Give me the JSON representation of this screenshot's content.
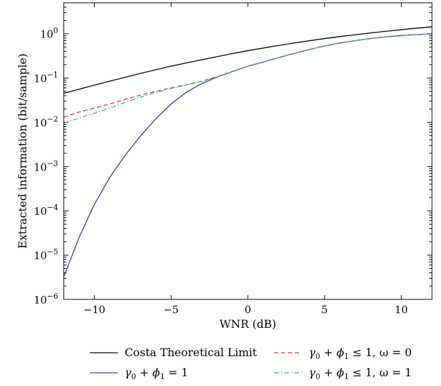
{
  "chart_data": {
    "type": "line",
    "title": "",
    "xlabel": "WNR (dB)",
    "ylabel": "Extracted information (bit/sample)",
    "xlim": [
      -12,
      12
    ],
    "ylim_log10": [
      -6,
      0.7
    ],
    "yscale": "log",
    "grid": false,
    "legend_position": "below",
    "x_ticks": [
      -10,
      -5,
      0,
      5,
      10
    ],
    "x_tick_labels": [
      "−10",
      "−5",
      "0",
      "5",
      "10"
    ],
    "y_ticks": [
      {
        "base": "10",
        "exp": "0",
        "value": 1
      },
      {
        "base": "10",
        "exp": "−1",
        "value": 0.1
      },
      {
        "base": "10",
        "exp": "−2",
        "value": 0.01
      },
      {
        "base": "10",
        "exp": "−3",
        "value": 0.001
      },
      {
        "base": "10",
        "exp": "−4",
        "value": 0.0001
      },
      {
        "base": "10",
        "exp": "−5",
        "value": 1e-05
      },
      {
        "base": "10",
        "exp": "−6",
        "value": 1e-06
      }
    ],
    "x": [
      -12,
      -11,
      -10,
      -9,
      -8,
      -7,
      -6,
      -5,
      -4,
      -3,
      -2,
      -1,
      0,
      1,
      2,
      3,
      4,
      5,
      6,
      7,
      8,
      9,
      10,
      11,
      12
    ],
    "series": [
      {
        "name": "Costa Theoretical Limit",
        "color": "#000000",
        "dash": "solid",
        "values": [
          0.045,
          0.056,
          0.069,
          0.085,
          0.104,
          0.127,
          0.154,
          0.185,
          0.22,
          0.259,
          0.305,
          0.357,
          0.414,
          0.477,
          0.545,
          0.618,
          0.696,
          0.778,
          0.864,
          0.953,
          1.045,
          1.14,
          1.236,
          1.334,
          1.433
        ]
      },
      {
        "name": "γ₀ + ϕ₁ = 1",
        "color": "#2e3f9e",
        "dash": "solid",
        "values": [
          3.2e-06,
          2.5e-05,
          0.00014,
          0.00057,
          0.0018,
          0.0049,
          0.012,
          0.026,
          0.048,
          0.075,
          0.105,
          0.14,
          0.185,
          0.23,
          0.29,
          0.36,
          0.44,
          0.53,
          0.62,
          0.7,
          0.78,
          0.85,
          0.91,
          0.96,
          0.99
        ]
      },
      {
        "name": "γ₀ + ϕ₁ ≤ 1, ω = 0",
        "color": "#e8302f",
        "dash": "6,4",
        "values": [
          0.013,
          0.017,
          0.021,
          0.026,
          0.033,
          0.041,
          0.05,
          0.06,
          0.071,
          0.085,
          0.108,
          0.142,
          0.185,
          0.23,
          0.29,
          0.36,
          0.44,
          0.53,
          0.62,
          0.7,
          0.78,
          0.85,
          0.91,
          0.96,
          0.99
        ]
      },
      {
        "name": "γ₀ + ϕ₁ ≤ 1, ω = 1",
        "color": "#2ab5b5",
        "dash": "7,3,1.5,3",
        "values": [
          0.0095,
          0.0125,
          0.016,
          0.021,
          0.028,
          0.037,
          0.047,
          0.058,
          0.07,
          0.084,
          0.107,
          0.14,
          0.183,
          0.228,
          0.288,
          0.358,
          0.438,
          0.528,
          0.618,
          0.698,
          0.778,
          0.848,
          0.908,
          0.958,
          0.988
        ]
      }
    ]
  },
  "legend": {
    "items": [
      {
        "prefix": "Costa Theoretical Limit",
        "greek1": "",
        "sub1": "",
        "mid": "",
        "greek2": "",
        "sub2": "",
        "suffix": ""
      },
      {
        "prefix": "",
        "greek1": "γ",
        "sub1": "0",
        "mid": " + ",
        "greek2": "ϕ",
        "sub2": "1",
        "suffix": " = 1"
      },
      {
        "prefix": "",
        "greek1": "γ",
        "sub1": "0",
        "mid": " + ",
        "greek2": "ϕ",
        "sub2": "1",
        "suffix": " ≤ 1, ω = 0"
      },
      {
        "prefix": "",
        "greek1": "γ",
        "sub1": "0",
        "mid": " + ",
        "greek2": "ϕ",
        "sub2": "1",
        "suffix": " ≤ 1, ω = 1"
      }
    ]
  }
}
